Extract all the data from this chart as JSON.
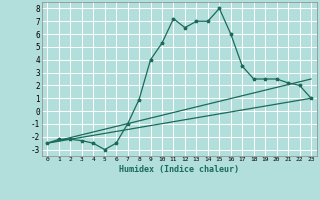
{
  "xlabel": "Humidex (Indice chaleur)",
  "bg_color": "#b2dfdb",
  "grid_color": "#ffffff",
  "line_color": "#1a6b5a",
  "xlim": [
    -0.5,
    23.5
  ],
  "ylim": [
    -3.5,
    8.5
  ],
  "yticks": [
    -3,
    -2,
    -1,
    0,
    1,
    2,
    3,
    4,
    5,
    6,
    7,
    8
  ],
  "xticks": [
    0,
    1,
    2,
    3,
    4,
    5,
    6,
    7,
    8,
    9,
    10,
    11,
    12,
    13,
    14,
    15,
    16,
    17,
    18,
    19,
    20,
    21,
    22,
    23
  ],
  "line1_x": [
    0,
    1,
    2,
    3,
    4,
    5,
    6,
    7,
    8,
    9,
    10,
    11,
    12,
    13,
    14,
    15,
    16,
    17,
    18,
    19,
    20,
    21,
    22,
    23
  ],
  "line1_y": [
    -2.5,
    -2.2,
    -2.2,
    -2.3,
    -2.5,
    -3.0,
    -2.5,
    -1.0,
    0.9,
    4.0,
    5.3,
    7.2,
    6.5,
    7.0,
    7.0,
    8.0,
    6.0,
    3.5,
    2.5,
    2.5,
    2.5,
    2.2,
    2.0,
    1.0
  ],
  "line2_x": [
    0,
    23
  ],
  "line2_y": [
    -2.5,
    1.0
  ],
  "line3_x": [
    0,
    23
  ],
  "line3_y": [
    -2.5,
    2.5
  ]
}
